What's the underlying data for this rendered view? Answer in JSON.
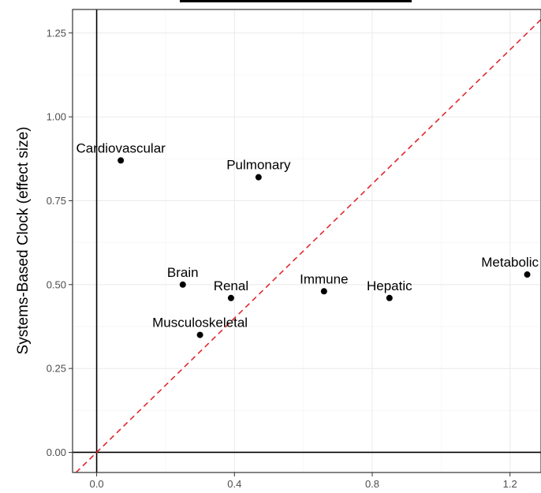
{
  "chart_data": {
    "type": "scatter",
    "title": "",
    "xlabel": "",
    "ylabel": "Systems-Based Clock (effect size)",
    "xlim": [
      -0.07,
      1.29
    ],
    "ylim": [
      -0.06,
      1.32
    ],
    "x_ticks": [
      0.0,
      0.4,
      0.8,
      1.2
    ],
    "x_tick_labels": [
      "0.0",
      "0.4",
      "0.8",
      "1.2"
    ],
    "y_ticks": [
      0.0,
      0.25,
      0.5,
      0.75,
      1.0,
      1.25
    ],
    "y_tick_labels": [
      "0.00",
      "0.25",
      "0.50",
      "0.75",
      "1.00",
      "1.25"
    ],
    "grid": true,
    "reference_lines": [
      {
        "type": "vertical",
        "x": 0,
        "color": "#000000",
        "style": "solid"
      },
      {
        "type": "horizontal",
        "y": 0,
        "color": "#000000",
        "style": "solid"
      },
      {
        "type": "diagonal",
        "slope": 1,
        "intercept": 0,
        "color": "#e0282e",
        "style": "dashed"
      }
    ],
    "points": [
      {
        "label": "Cardiovascular",
        "x": 0.07,
        "y": 0.87
      },
      {
        "label": "Pulmonary",
        "x": 0.47,
        "y": 0.82
      },
      {
        "label": "Brain",
        "x": 0.25,
        "y": 0.5
      },
      {
        "label": "Renal",
        "x": 0.39,
        "y": 0.46
      },
      {
        "label": "Musculoskeletal",
        "x": 0.3,
        "y": 0.35
      },
      {
        "label": "Immune",
        "x": 0.66,
        "y": 0.48
      },
      {
        "label": "Hepatic",
        "x": 0.85,
        "y": 0.46
      },
      {
        "label": "Metabolic",
        "x": 1.25,
        "y": 0.53
      }
    ],
    "point_color": "#000000"
  }
}
